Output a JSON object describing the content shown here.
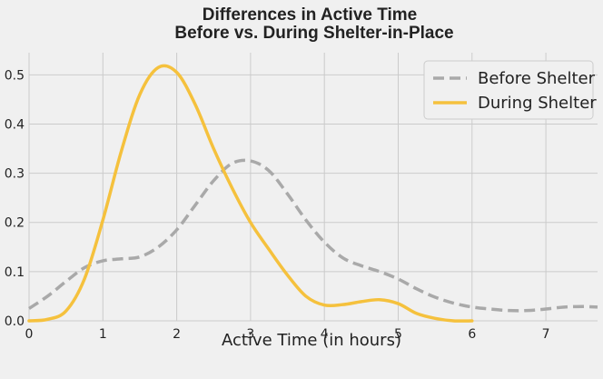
{
  "chart_data": {
    "type": "line",
    "title_line1": "Differences in Active Time",
    "title_line2": "Before vs. During Shelter-in-Place",
    "xlabel": "Active Time (in hours)",
    "ylabel": "",
    "xlim": [
      0,
      7.7
    ],
    "ylim": [
      0,
      0.545
    ],
    "xticks": [
      0,
      1,
      2,
      3,
      4,
      5,
      6,
      7
    ],
    "yticks": [
      0.0,
      0.1,
      0.2,
      0.3,
      0.4,
      0.5
    ],
    "grid": true,
    "legend_position": "top-right",
    "series": [
      {
        "name": "Before Shelter",
        "color": "#a9a9a9",
        "style": "dashed",
        "x": [
          0,
          0.25,
          0.5,
          0.75,
          1.0,
          1.25,
          1.5,
          1.75,
          2.0,
          2.25,
          2.5,
          2.75,
          3.0,
          3.25,
          3.5,
          3.75,
          4.0,
          4.25,
          4.5,
          4.75,
          5.0,
          5.25,
          5.5,
          5.75,
          6.0,
          6.25,
          6.5,
          6.75,
          7.0,
          7.25,
          7.5,
          7.7
        ],
        "y": [
          0.025,
          0.05,
          0.08,
          0.108,
          0.122,
          0.126,
          0.13,
          0.15,
          0.185,
          0.235,
          0.285,
          0.32,
          0.325,
          0.305,
          0.258,
          0.205,
          0.16,
          0.128,
          0.112,
          0.1,
          0.085,
          0.065,
          0.048,
          0.036,
          0.028,
          0.024,
          0.021,
          0.021,
          0.024,
          0.028,
          0.029,
          0.028
        ]
      },
      {
        "name": "During Shelter",
        "color": "#f5c13d",
        "style": "solid",
        "x": [
          0,
          0.25,
          0.5,
          0.75,
          1.0,
          1.25,
          1.5,
          1.75,
          2.0,
          2.25,
          2.5,
          2.75,
          3.0,
          3.25,
          3.5,
          3.75,
          4.0,
          4.25,
          4.5,
          4.75,
          5.0,
          5.25,
          5.5,
          5.75,
          6.0
        ],
        "y": [
          0.0,
          0.003,
          0.02,
          0.085,
          0.205,
          0.345,
          0.46,
          0.515,
          0.505,
          0.44,
          0.35,
          0.27,
          0.2,
          0.145,
          0.093,
          0.05,
          0.032,
          0.033,
          0.039,
          0.043,
          0.035,
          0.015,
          0.005,
          0.0,
          0.0
        ]
      }
    ]
  }
}
